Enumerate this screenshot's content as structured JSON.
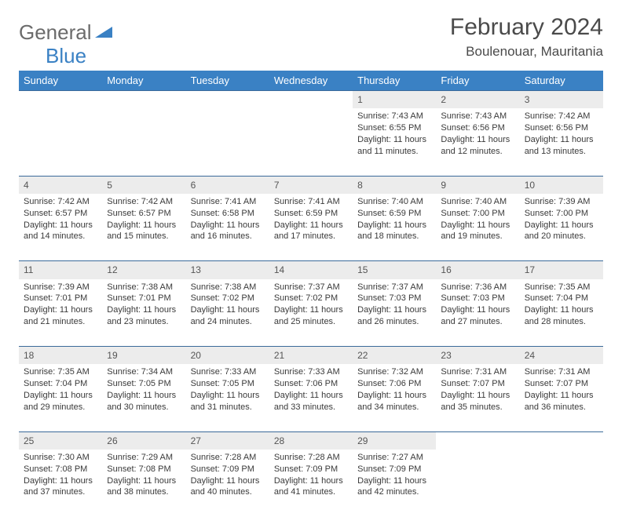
{
  "logo": {
    "text1": "General",
    "text2": "Blue",
    "color1": "#6b6b6b",
    "color2": "#3a81c4"
  },
  "header": {
    "month": "February 2024",
    "location": "Boulenouar, Mauritania"
  },
  "style": {
    "header_bg": "#3a81c4",
    "header_fg": "#ffffff",
    "daynum_bg": "#ececec",
    "border_color": "#3a6a9a",
    "body_font_size": 11,
    "header_font_size": 13,
    "month_font_size": 30,
    "location_font_size": 17
  },
  "weekdays": [
    "Sunday",
    "Monday",
    "Tuesday",
    "Wednesday",
    "Thursday",
    "Friday",
    "Saturday"
  ],
  "weeks": [
    [
      null,
      null,
      null,
      null,
      {
        "n": "1",
        "sr": "Sunrise: 7:43 AM",
        "ss": "Sunset: 6:55 PM",
        "dl": "Daylight: 11 hours and 11 minutes."
      },
      {
        "n": "2",
        "sr": "Sunrise: 7:43 AM",
        "ss": "Sunset: 6:56 PM",
        "dl": "Daylight: 11 hours and 12 minutes."
      },
      {
        "n": "3",
        "sr": "Sunrise: 7:42 AM",
        "ss": "Sunset: 6:56 PM",
        "dl": "Daylight: 11 hours and 13 minutes."
      }
    ],
    [
      {
        "n": "4",
        "sr": "Sunrise: 7:42 AM",
        "ss": "Sunset: 6:57 PM",
        "dl": "Daylight: 11 hours and 14 minutes."
      },
      {
        "n": "5",
        "sr": "Sunrise: 7:42 AM",
        "ss": "Sunset: 6:57 PM",
        "dl": "Daylight: 11 hours and 15 minutes."
      },
      {
        "n": "6",
        "sr": "Sunrise: 7:41 AM",
        "ss": "Sunset: 6:58 PM",
        "dl": "Daylight: 11 hours and 16 minutes."
      },
      {
        "n": "7",
        "sr": "Sunrise: 7:41 AM",
        "ss": "Sunset: 6:59 PM",
        "dl": "Daylight: 11 hours and 17 minutes."
      },
      {
        "n": "8",
        "sr": "Sunrise: 7:40 AM",
        "ss": "Sunset: 6:59 PM",
        "dl": "Daylight: 11 hours and 18 minutes."
      },
      {
        "n": "9",
        "sr": "Sunrise: 7:40 AM",
        "ss": "Sunset: 7:00 PM",
        "dl": "Daylight: 11 hours and 19 minutes."
      },
      {
        "n": "10",
        "sr": "Sunrise: 7:39 AM",
        "ss": "Sunset: 7:00 PM",
        "dl": "Daylight: 11 hours and 20 minutes."
      }
    ],
    [
      {
        "n": "11",
        "sr": "Sunrise: 7:39 AM",
        "ss": "Sunset: 7:01 PM",
        "dl": "Daylight: 11 hours and 21 minutes."
      },
      {
        "n": "12",
        "sr": "Sunrise: 7:38 AM",
        "ss": "Sunset: 7:01 PM",
        "dl": "Daylight: 11 hours and 23 minutes."
      },
      {
        "n": "13",
        "sr": "Sunrise: 7:38 AM",
        "ss": "Sunset: 7:02 PM",
        "dl": "Daylight: 11 hours and 24 minutes."
      },
      {
        "n": "14",
        "sr": "Sunrise: 7:37 AM",
        "ss": "Sunset: 7:02 PM",
        "dl": "Daylight: 11 hours and 25 minutes."
      },
      {
        "n": "15",
        "sr": "Sunrise: 7:37 AM",
        "ss": "Sunset: 7:03 PM",
        "dl": "Daylight: 11 hours and 26 minutes."
      },
      {
        "n": "16",
        "sr": "Sunrise: 7:36 AM",
        "ss": "Sunset: 7:03 PM",
        "dl": "Daylight: 11 hours and 27 minutes."
      },
      {
        "n": "17",
        "sr": "Sunrise: 7:35 AM",
        "ss": "Sunset: 7:04 PM",
        "dl": "Daylight: 11 hours and 28 minutes."
      }
    ],
    [
      {
        "n": "18",
        "sr": "Sunrise: 7:35 AM",
        "ss": "Sunset: 7:04 PM",
        "dl": "Daylight: 11 hours and 29 minutes."
      },
      {
        "n": "19",
        "sr": "Sunrise: 7:34 AM",
        "ss": "Sunset: 7:05 PM",
        "dl": "Daylight: 11 hours and 30 minutes."
      },
      {
        "n": "20",
        "sr": "Sunrise: 7:33 AM",
        "ss": "Sunset: 7:05 PM",
        "dl": "Daylight: 11 hours and 31 minutes."
      },
      {
        "n": "21",
        "sr": "Sunrise: 7:33 AM",
        "ss": "Sunset: 7:06 PM",
        "dl": "Daylight: 11 hours and 33 minutes."
      },
      {
        "n": "22",
        "sr": "Sunrise: 7:32 AM",
        "ss": "Sunset: 7:06 PM",
        "dl": "Daylight: 11 hours and 34 minutes."
      },
      {
        "n": "23",
        "sr": "Sunrise: 7:31 AM",
        "ss": "Sunset: 7:07 PM",
        "dl": "Daylight: 11 hours and 35 minutes."
      },
      {
        "n": "24",
        "sr": "Sunrise: 7:31 AM",
        "ss": "Sunset: 7:07 PM",
        "dl": "Daylight: 11 hours and 36 minutes."
      }
    ],
    [
      {
        "n": "25",
        "sr": "Sunrise: 7:30 AM",
        "ss": "Sunset: 7:08 PM",
        "dl": "Daylight: 11 hours and 37 minutes."
      },
      {
        "n": "26",
        "sr": "Sunrise: 7:29 AM",
        "ss": "Sunset: 7:08 PM",
        "dl": "Daylight: 11 hours and 38 minutes."
      },
      {
        "n": "27",
        "sr": "Sunrise: 7:28 AM",
        "ss": "Sunset: 7:09 PM",
        "dl": "Daylight: 11 hours and 40 minutes."
      },
      {
        "n": "28",
        "sr": "Sunrise: 7:28 AM",
        "ss": "Sunset: 7:09 PM",
        "dl": "Daylight: 11 hours and 41 minutes."
      },
      {
        "n": "29",
        "sr": "Sunrise: 7:27 AM",
        "ss": "Sunset: 7:09 PM",
        "dl": "Daylight: 11 hours and 42 minutes."
      },
      null,
      null
    ]
  ]
}
